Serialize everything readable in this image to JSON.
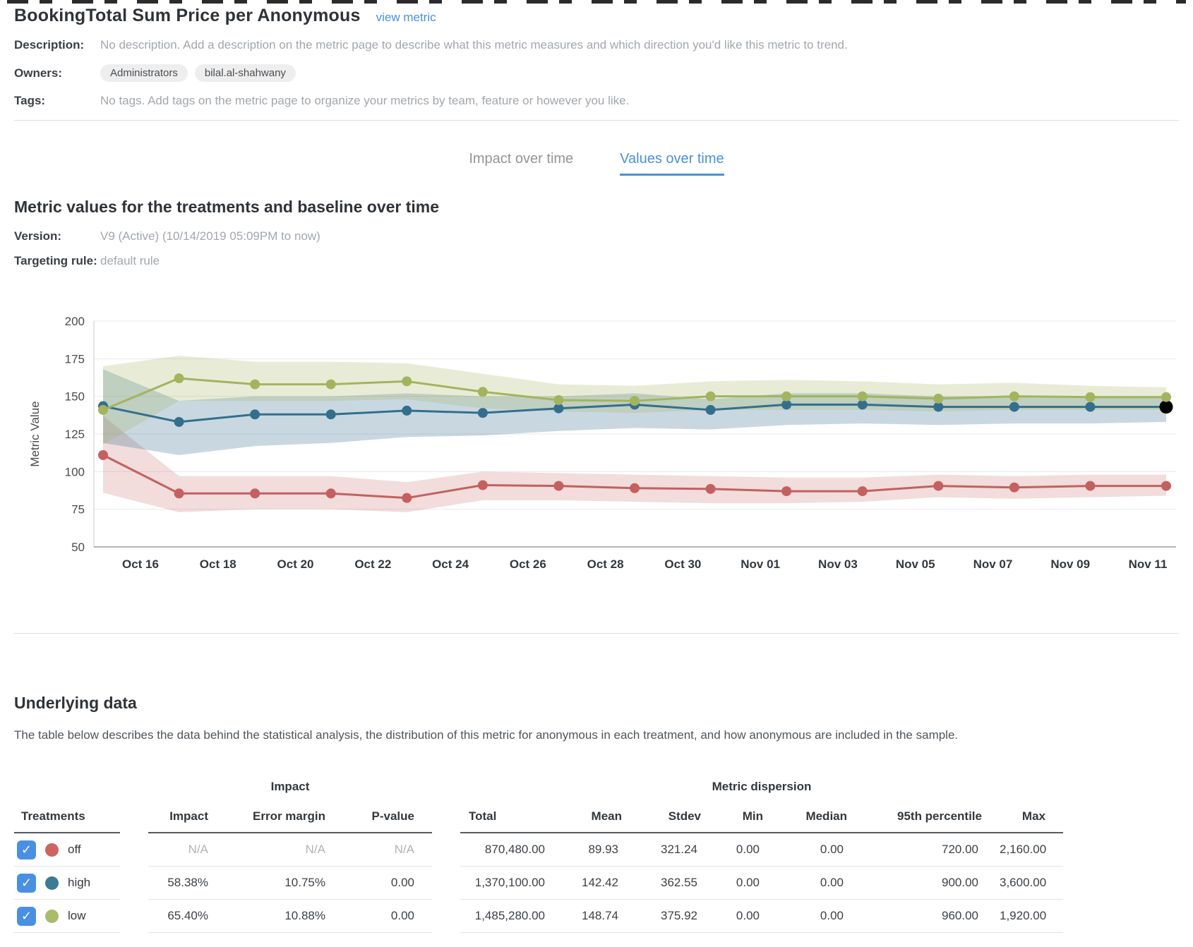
{
  "header": {
    "title": "BookingTotal Sum Price per Anonymous",
    "view_metric_label": "view metric"
  },
  "meta": {
    "description_label": "Description:",
    "description": "No description. Add a description on the metric page to describe what this metric measures and which direction you'd like this metric to trend.",
    "owners_label": "Owners:",
    "owners": [
      "Administrators",
      "bilal.al-shahwany"
    ],
    "tags_label": "Tags:",
    "tags": "No tags. Add tags on the metric page to organize your metrics by team, feature or however you like."
  },
  "tabs": [
    {
      "label": "Impact over time",
      "active": false
    },
    {
      "label": "Values over time",
      "active": true
    }
  ],
  "section": {
    "heading": "Metric values for the treatments and baseline over time",
    "version_label": "Version:",
    "version": "V9 (Active) (10/14/2019 05:09PM to now)",
    "targeting_label": "Targeting rule:",
    "targeting": "default rule"
  },
  "chart_data": {
    "type": "line",
    "title": "",
    "xlabel": "",
    "ylabel": "Metric Value",
    "ylim": [
      50,
      200
    ],
    "yticks": [
      50,
      75,
      100,
      125,
      150,
      175,
      200
    ],
    "grid": true,
    "legend_position": "none",
    "x": [
      "Oct 15",
      "Oct 17",
      "Oct 19",
      "Oct 21",
      "Oct 23",
      "Oct 25",
      "Oct 27",
      "Oct 29",
      "Oct 31",
      "Nov 02",
      "Nov 04",
      "Nov 06",
      "Nov 08",
      "Nov 10",
      "Nov 12"
    ],
    "x_tick_labels": [
      "Oct 16",
      "Oct 18",
      "Oct 20",
      "Oct 22",
      "Oct 24",
      "Oct 26",
      "Oct 28",
      "Oct 30",
      "Nov 01",
      "Nov 03",
      "Nov 05",
      "Nov 07",
      "Nov 09",
      "Nov 11"
    ],
    "series": [
      {
        "name": "off",
        "color": "#c4605f",
        "band_color": "rgba(196,96,95,0.22)",
        "values": [
          111,
          85.5,
          85.5,
          85.5,
          82.5,
          91,
          90.5,
          89,
          88.5,
          87,
          87,
          90.5,
          89.5,
          90.5,
          90.5
        ],
        "band_low": [
          86,
          73,
          75,
          75,
          73,
          81,
          81,
          80,
          79,
          79,
          80,
          83,
          82,
          83,
          84
        ],
        "band_high": [
          137,
          97,
          97,
          97,
          93,
          100,
          99,
          98,
          97,
          96,
          96,
          98,
          97,
          98,
          98
        ]
      },
      {
        "name": "high",
        "color": "#336f8d",
        "band_color": "rgba(54,112,141,0.27)",
        "values": [
          143.5,
          133,
          138,
          138,
          140.5,
          139,
          142,
          144.5,
          141,
          144.5,
          144.5,
          143,
          143,
          143,
          143
        ],
        "band_low": [
          119,
          111,
          117,
          119,
          123,
          124,
          127,
          129,
          128,
          131,
          132,
          131,
          132,
          132,
          133
        ],
        "band_high": [
          168,
          147,
          150,
          150,
          152,
          150,
          150,
          152,
          148,
          152,
          152,
          150,
          150,
          150,
          150
        ]
      },
      {
        "name": "low",
        "color": "#a3b45f",
        "band_color": "rgba(164,180,95,0.25)",
        "values": [
          141,
          162,
          158,
          158,
          160,
          153,
          147.5,
          147,
          150,
          150,
          150,
          148.5,
          150,
          149.5,
          149.5
        ],
        "band_low": [
          118,
          147,
          147,
          147,
          148,
          142,
          140,
          139,
          141,
          141,
          141,
          140,
          141,
          141,
          141
        ],
        "band_high": [
          170,
          177,
          173,
          173,
          172,
          165,
          158,
          157,
          160,
          161,
          160,
          158,
          159,
          157,
          156
        ]
      }
    ],
    "last_point_highlight": {
      "series": "high",
      "color": "#000000"
    }
  },
  "underlying": {
    "heading": "Underlying data",
    "description": "The table below describes the data behind the statistical analysis, the distribution of this metric for anonymous in each treatment, and how anonymous are included in the sample.",
    "table": {
      "treatments_header": "Treatments",
      "groups": [
        {
          "label": "Impact"
        },
        {
          "label": "Metric dispersion"
        }
      ],
      "columns": [
        "Impact",
        "Error margin",
        "P-value",
        "Total",
        "Mean",
        "Stdev",
        "Min",
        "Median",
        "95th percentile",
        "Max"
      ],
      "rows": [
        {
          "treatment": "off",
          "color": "#ce6460",
          "checked": true,
          "values": [
            "N/A",
            "N/A",
            "N/A",
            "870,480.00",
            "89.93",
            "321.24",
            "0.00",
            "0.00",
            "720.00",
            "2,160.00"
          ]
        },
        {
          "treatment": "high",
          "color": "#3d7a96",
          "checked": true,
          "values": [
            "58.38%",
            "10.75%",
            "0.00",
            "1,370,100.00",
            "142.42",
            "362.55",
            "0.00",
            "0.00",
            "900.00",
            "3,600.00"
          ]
        },
        {
          "treatment": "low",
          "color": "#a9bc6a",
          "checked": true,
          "values": [
            "65.40%",
            "10.88%",
            "0.00",
            "1,485,280.00",
            "148.74",
            "375.92",
            "0.00",
            "0.00",
            "960.00",
            "1,920.00"
          ]
        }
      ],
      "checkmark": "✓"
    }
  },
  "colors": {
    "accent_blue": "#4a90d9",
    "checkbox_blue": "#4a90e2",
    "grid": "#e8e8e8",
    "axis": "#9b9b9b"
  }
}
